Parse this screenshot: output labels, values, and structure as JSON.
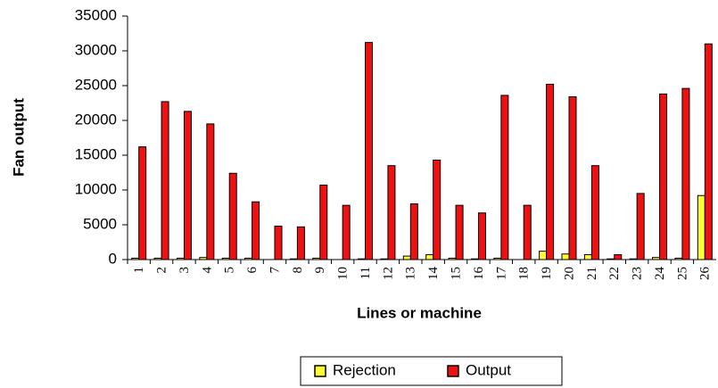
{
  "chart_data": {
    "type": "bar",
    "xlabel": "Lines or machine",
    "ylabel": "Fan output",
    "categories": [
      "1",
      "2",
      "3",
      "4",
      "5",
      "6",
      "7",
      "8",
      "9",
      "10",
      "11",
      "12",
      "13",
      "14",
      "15",
      "16",
      "17",
      "18",
      "19",
      "20",
      "21",
      "22",
      "23",
      "24",
      "25",
      "26"
    ],
    "series": [
      {
        "name": "Rejection",
        "color": "#ffff33",
        "values": [
          200,
          200,
          200,
          300,
          200,
          200,
          0,
          100,
          200,
          0,
          100,
          100,
          500,
          700,
          200,
          100,
          200,
          0,
          1200,
          800,
          700,
          100,
          100,
          300,
          200,
          9200
        ]
      },
      {
        "name": "Output",
        "color": "#ee1111",
        "values": [
          16200,
          22700,
          21300,
          19500,
          12400,
          8300,
          4800,
          4700,
          10700,
          7800,
          31200,
          13500,
          8000,
          14300,
          7800,
          6700,
          23600,
          7800,
          25200,
          23400,
          13500,
          700,
          9500,
          23800,
          24600,
          31000
        ]
      }
    ],
    "ylim": [
      0,
      35000
    ],
    "yticks": [
      0,
      5000,
      10000,
      15000,
      20000,
      25000,
      30000,
      35000
    ],
    "legend": "bottom"
  }
}
